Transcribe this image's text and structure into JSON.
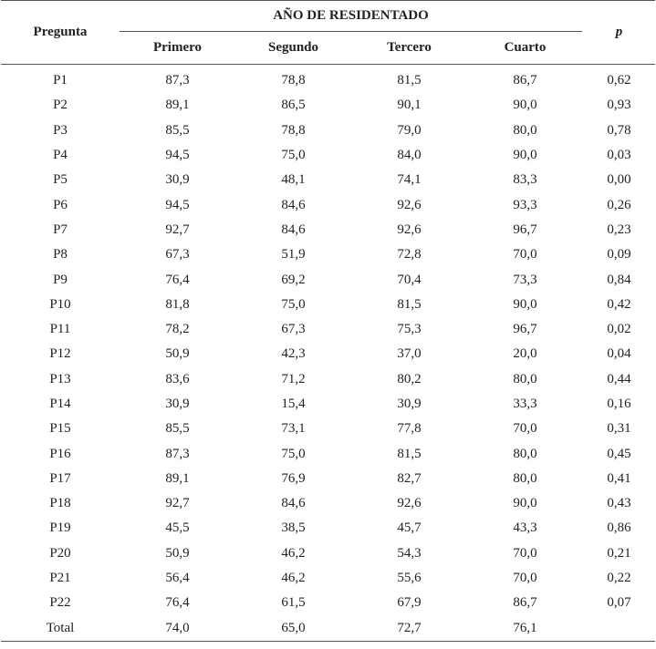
{
  "header": {
    "pregunta": "Pregunta",
    "ano": "AÑO DE RESIDENTADO",
    "years": [
      "Primero",
      "Segundo",
      "Tercero",
      "Cuarto"
    ],
    "p": "p"
  },
  "rows": [
    {
      "q": "P1",
      "v": [
        "87,3",
        "78,8",
        "81,5",
        "86,7"
      ],
      "p": "0,62"
    },
    {
      "q": "P2",
      "v": [
        "89,1",
        "86,5",
        "90,1",
        "90,0"
      ],
      "p": "0,93"
    },
    {
      "q": "P3",
      "v": [
        "85,5",
        "78,8",
        "79,0",
        "80,0"
      ],
      "p": "0,78"
    },
    {
      "q": "P4",
      "v": [
        "94,5",
        "75,0",
        "84,0",
        "90,0"
      ],
      "p": "0,03"
    },
    {
      "q": "P5",
      "v": [
        "30,9",
        "48,1",
        "74,1",
        "83,3"
      ],
      "p": "0,00"
    },
    {
      "q": "P6",
      "v": [
        "94,5",
        "84,6",
        "92,6",
        "93,3"
      ],
      "p": "0,26"
    },
    {
      "q": "P7",
      "v": [
        "92,7",
        "84,6",
        "92,6",
        "96,7"
      ],
      "p": "0,23"
    },
    {
      "q": "P8",
      "v": [
        "67,3",
        "51,9",
        "72,8",
        "70,0"
      ],
      "p": "0,09"
    },
    {
      "q": "P9",
      "v": [
        "76,4",
        "69,2",
        "70,4",
        "73,3"
      ],
      "p": "0,84"
    },
    {
      "q": "P10",
      "v": [
        "81,8",
        "75,0",
        "81,5",
        "90,0"
      ],
      "p": "0,42"
    },
    {
      "q": "P11",
      "v": [
        "78,2",
        "67,3",
        "75,3",
        "96,7"
      ],
      "p": "0,02"
    },
    {
      "q": "P12",
      "v": [
        "50,9",
        "42,3",
        "37,0",
        "20,0"
      ],
      "p": "0,04"
    },
    {
      "q": "P13",
      "v": [
        "83,6",
        "71,2",
        "80,2",
        "80,0"
      ],
      "p": "0,44"
    },
    {
      "q": "P14",
      "v": [
        "30,9",
        "15,4",
        "30,9",
        "33,3"
      ],
      "p": "0,16"
    },
    {
      "q": "P15",
      "v": [
        "85,5",
        "73,1",
        "77,8",
        "70,0"
      ],
      "p": "0,31"
    },
    {
      "q": "P16",
      "v": [
        "87,3",
        "75,0",
        "81,5",
        "80,0"
      ],
      "p": "0,45"
    },
    {
      "q": "P17",
      "v": [
        "89,1",
        "76,9",
        "82,7",
        "80,0"
      ],
      "p": "0,41"
    },
    {
      "q": "P18",
      "v": [
        "92,7",
        "84,6",
        "92,6",
        "90,0"
      ],
      "p": "0,43"
    },
    {
      "q": "P19",
      "v": [
        "45,5",
        "38,5",
        "45,7",
        "43,3"
      ],
      "p": "0,86"
    },
    {
      "q": "P20",
      "v": [
        "50,9",
        "46,2",
        "54,3",
        "70,0"
      ],
      "p": "0,21"
    },
    {
      "q": "P21",
      "v": [
        "56,4",
        "46,2",
        "55,6",
        "70,0"
      ],
      "p": "0,22"
    },
    {
      "q": "P22",
      "v": [
        "76,4",
        "61,5",
        "67,9",
        "86,7"
      ],
      "p": "0,07"
    },
    {
      "q": "Total",
      "v": [
        "74,0",
        "65,0",
        "72,7",
        "76,1"
      ],
      "p": ""
    }
  ]
}
